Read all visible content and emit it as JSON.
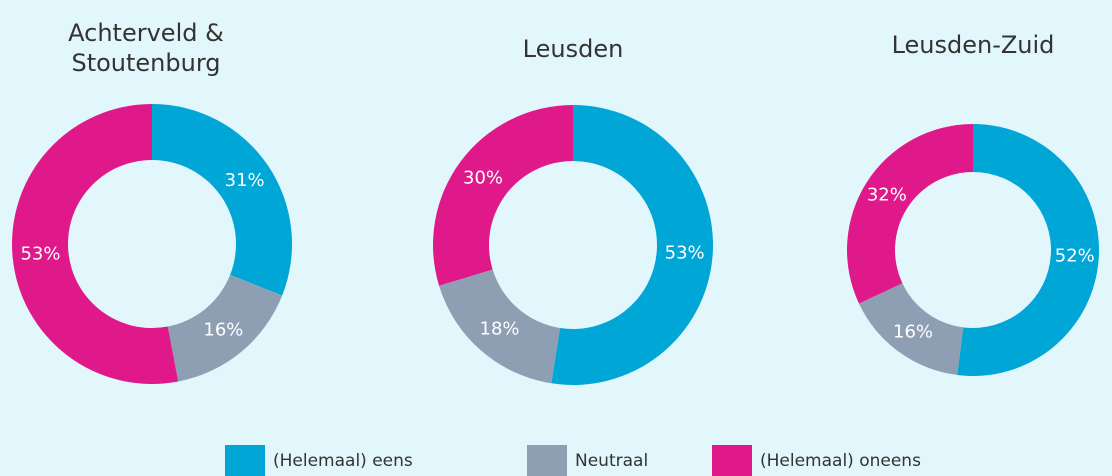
{
  "legend": [
    {
      "name": "(Helemaal) eens",
      "color": "#00a6d6"
    },
    {
      "name": "Neutraal",
      "color": "#8f9fb3"
    },
    {
      "name": "(Helemaal) oneens",
      "color": "#e0198a"
    }
  ],
  "chart_data": [
    {
      "type": "donut",
      "title": "Achterveld & Stoutenburg",
      "values": [
        31,
        16,
        53
      ],
      "value_labels": [
        "31%",
        "16%",
        "53%"
      ]
    },
    {
      "type": "donut",
      "title": "Leusden",
      "values": [
        53,
        18,
        30
      ],
      "value_labels": [
        "53%",
        "18%",
        "30%"
      ]
    },
    {
      "type": "donut",
      "title": "Leusden-Zuid",
      "values": [
        52,
        16,
        32
      ],
      "value_labels": [
        "52%",
        "16%",
        "32%"
      ]
    }
  ]
}
